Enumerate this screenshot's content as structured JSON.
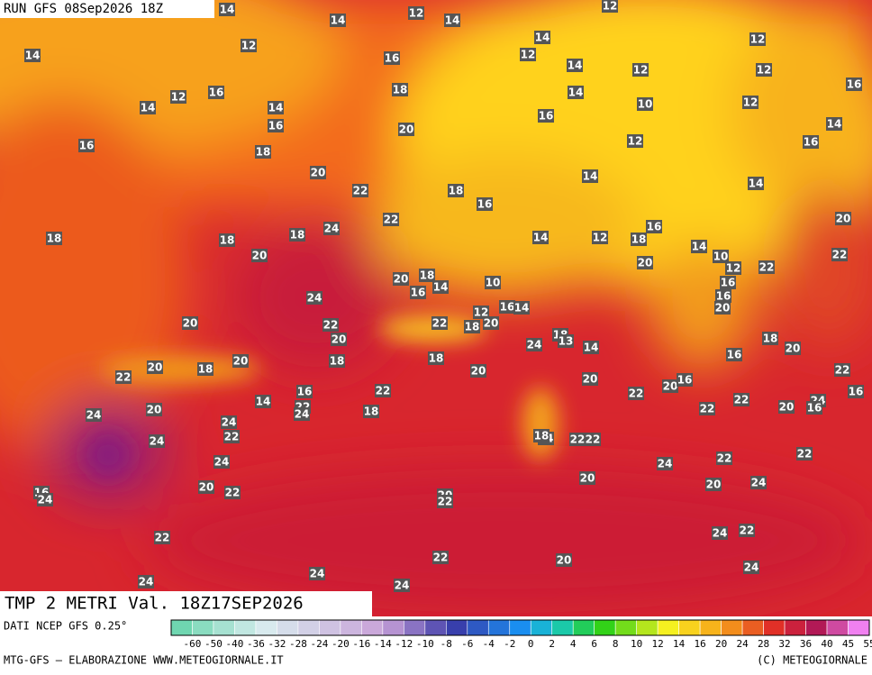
{
  "header": {
    "run": "RUN GFS 08Sep2026 18Z"
  },
  "footer": {
    "field": "TMP 2 METRI Val. 18Z17SEP2026",
    "source": "DATI NCEP GFS 0.25°",
    "credit": "MTG-GFS — ELABORAZIONE WWW.METEOGIORNALE.IT",
    "copyright": "(C) METEOGIORNALE"
  },
  "colorbar": {
    "ticks": [
      -60,
      -50,
      -40,
      -36,
      -32,
      -28,
      -24,
      -20,
      -16,
      -14,
      -12,
      -10,
      -8,
      -6,
      -4,
      -2,
      0,
      2,
      4,
      6,
      8,
      10,
      12,
      14,
      16,
      20,
      24,
      28,
      32,
      36,
      40,
      45,
      55
    ]
  },
  "map_labels": [
    "14",
    "12",
    "14",
    "14",
    "12",
    "14",
    "12",
    "14",
    "16",
    "12",
    "14",
    "12",
    "12",
    "12",
    "16",
    "12",
    "16",
    "14",
    "14",
    "18",
    "14",
    "10",
    "12",
    "16",
    "16",
    "14",
    "20",
    "16",
    "18",
    "12",
    "16",
    "20",
    "22",
    "18",
    "14",
    "14",
    "16",
    "22",
    "16",
    "20",
    "18",
    "18",
    "18",
    "24",
    "14",
    "12",
    "18",
    "14",
    "10",
    "20",
    "22",
    "20",
    "12",
    "22",
    "20",
    "18",
    "14",
    "16",
    "10",
    "16",
    "24",
    "16",
    "20",
    "12",
    "16",
    "14",
    "20",
    "22",
    "22",
    "18",
    "20",
    "20",
    "18",
    "13",
    "14",
    "24",
    "18",
    "20",
    "18",
    "18",
    "20",
    "16",
    "20",
    "18",
    "22",
    "20",
    "20",
    "22",
    "20",
    "16",
    "16",
    "16",
    "22",
    "22",
    "14",
    "24",
    "22",
    "16",
    "20",
    "22",
    "20",
    "18",
    "24",
    "24",
    "24",
    "22",
    "24",
    "18",
    "22",
    "22",
    "22",
    "24",
    "22",
    "24",
    "20",
    "20",
    "24",
    "20",
    "22",
    "16",
    "24",
    "20",
    "22",
    "22",
    "24",
    "22",
    "22",
    "20",
    "24",
    "24",
    "24",
    "24",
    "24",
    "22"
  ]
}
